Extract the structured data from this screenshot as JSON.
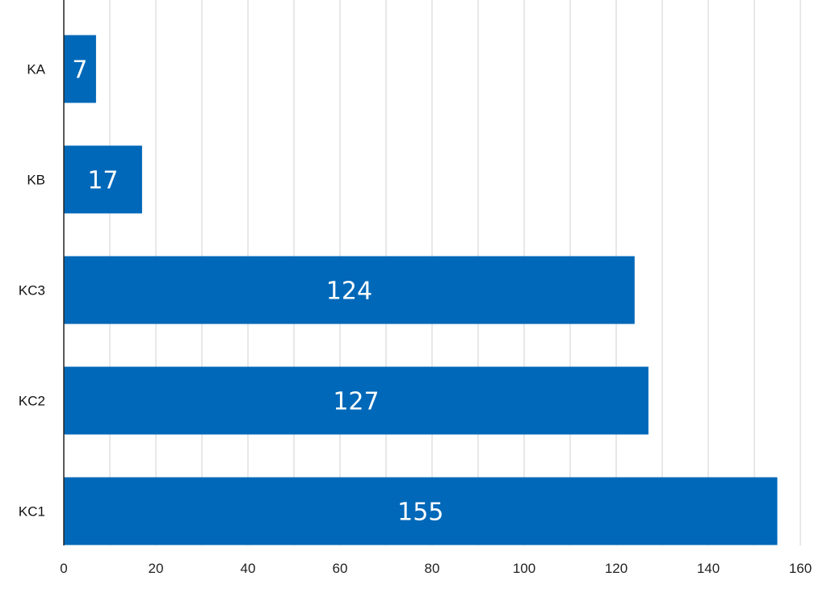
{
  "chart_data": {
    "type": "bar",
    "orientation": "horizontal",
    "categories": [
      "KA",
      "KB",
      "KC3",
      "KC2",
      "KC1"
    ],
    "values": [
      7,
      17,
      124,
      127,
      155
    ],
    "data_labels": [
      "7",
      "17",
      "124",
      "127",
      "155"
    ],
    "xlim": [
      0,
      160
    ],
    "xticks": [
      0,
      20,
      40,
      60,
      80,
      100,
      120,
      140,
      160
    ],
    "grid": "vertical",
    "bar_color": "#0068b8",
    "label_color": "#ffffff"
  }
}
